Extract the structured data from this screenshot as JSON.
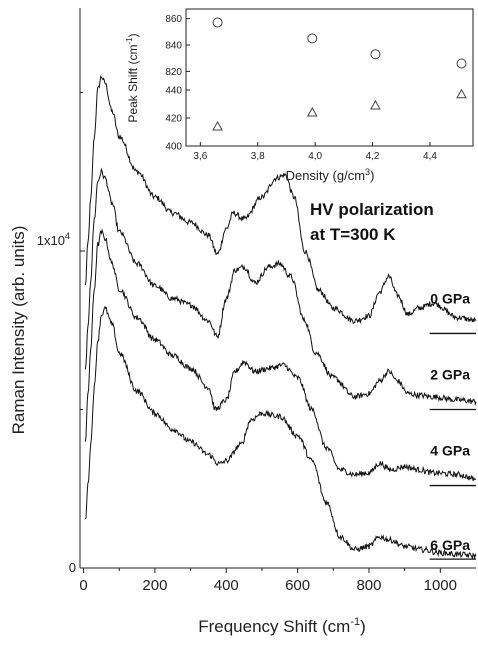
{
  "chart_data": [
    {
      "type": "line",
      "xlabel": "Frequency Shift (cm",
      "xlabel_sup": "-1",
      "xlabel_end": ")",
      "ylabel": "Raman Intensity (arb. units)",
      "xlim": [
        -10,
        1100
      ],
      "x_ticks": [
        "0",
        "200",
        "400",
        "600",
        "800",
        "1000"
      ],
      "y_tick_labels": {
        "zero": "0",
        "one_e4": "1x10",
        "one_e4_sup": "4"
      },
      "y_scale": "arbitrary, curves offset vertically",
      "annotation": [
        "HV polarization",
        "at T=300 K"
      ],
      "series": [
        {
          "name": "0 GPa",
          "offset": 7400,
          "x": [
            5,
            12,
            20,
            30,
            40,
            50,
            60,
            80,
            100,
            150,
            200,
            250,
            300,
            350,
            375,
            400,
            420,
            450,
            500,
            540,
            565,
            590,
            620,
            660,
            700,
            760,
            800,
            830,
            855,
            880,
            910,
            940,
            980,
            1050,
            1100
          ],
          "y": [
            1500,
            2800,
            4200,
            6200,
            7700,
            8100,
            7900,
            7000,
            6200,
            5100,
            4300,
            3800,
            3500,
            3100,
            2500,
            3300,
            3800,
            3600,
            4300,
            4900,
            5000,
            4300,
            2600,
            1350,
            800,
            400,
            550,
            1300,
            1800,
            1200,
            600,
            800,
            950,
            500,
            400
          ]
        },
        {
          "name": "2 GPa",
          "offset": 5000,
          "x": [
            5,
            12,
            20,
            30,
            40,
            50,
            60,
            80,
            100,
            150,
            200,
            250,
            300,
            350,
            375,
            400,
            425,
            450,
            480,
            520,
            550,
            580,
            620,
            650,
            700,
            760,
            800,
            830,
            855,
            880,
            910,
            940,
            980,
            1050,
            1100
          ],
          "y": [
            1200,
            2500,
            4100,
            6000,
            7200,
            7500,
            7300,
            6500,
            5600,
            4600,
            3900,
            3500,
            3300,
            2800,
            2300,
            3500,
            4400,
            4500,
            4000,
            4500,
            4600,
            4200,
            2800,
            1800,
            1000,
            400,
            500,
            900,
            1200,
            900,
            500,
            450,
            400,
            300,
            250
          ]
        },
        {
          "name": "4 GPa",
          "offset": 2600,
          "x": [
            5,
            12,
            20,
            30,
            40,
            50,
            60,
            80,
            100,
            150,
            200,
            250,
            300,
            350,
            370,
            400,
            425,
            450,
            480,
            520,
            560,
            600,
            640,
            680,
            720,
            760,
            800,
            830,
            860,
            900,
            940,
            980,
            1050,
            1100
          ],
          "y": [
            1400,
            2800,
            4300,
            6200,
            7600,
            8000,
            7800,
            7000,
            6200,
            5300,
            4600,
            4100,
            3700,
            3100,
            2400,
            2700,
            3600,
            3900,
            3600,
            3700,
            3800,
            3400,
            2400,
            1200,
            500,
            350,
            400,
            700,
            500,
            600,
            500,
            400,
            350,
            200
          ]
        },
        {
          "name": "6 GPa",
          "offset": 280,
          "x": [
            5,
            12,
            20,
            30,
            40,
            50,
            60,
            80,
            100,
            150,
            200,
            250,
            300,
            350,
            380,
            400,
            440,
            470,
            500,
            550,
            600,
            640,
            680,
            720,
            760,
            800,
            830,
            860,
            900,
            950,
            1000,
            1050,
            1100
          ],
          "y": [
            1200,
            2300,
            3600,
            5400,
            6900,
            7700,
            7900,
            7400,
            6500,
            5300,
            4600,
            4100,
            3700,
            3300,
            3000,
            3100,
            3600,
            4400,
            4600,
            4500,
            3900,
            3100,
            1800,
            700,
            300,
            400,
            700,
            600,
            400,
            300,
            200,
            150,
            100
          ]
        }
      ],
      "baselines_x": [
        970,
        1100
      ],
      "units": ""
    },
    {
      "type": "scatter",
      "xlabel": "Density (g/cm",
      "xlabel_sup": "3",
      "xlabel_end": ")",
      "ylabel": "Peak Shift (cm",
      "ylabel_sup": "-1",
      "ylabel_end": ")",
      "xlim": [
        3.55,
        4.55
      ],
      "x_ticks": [
        "3,6",
        "3,8",
        "4,0",
        "4,2",
        "4,4"
      ],
      "x_tick_values": [
        3.6,
        3.8,
        4.0,
        4.2,
        4.4
      ],
      "upper_ylim": [
        815,
        865
      ],
      "upper_y_ticks": [
        820,
        840,
        860
      ],
      "lower_ylim": [
        400,
        445
      ],
      "lower_y_ticks": [
        400,
        420,
        440
      ],
      "series": [
        {
          "marker": "circle",
          "x": [
            3.66,
            3.99,
            4.21,
            4.51
          ],
          "y": [
            857,
            845,
            833,
            826
          ]
        },
        {
          "marker": "triangle",
          "x": [
            3.66,
            3.99,
            4.21,
            4.51
          ],
          "y": [
            414,
            424,
            429,
            437
          ]
        }
      ]
    }
  ]
}
